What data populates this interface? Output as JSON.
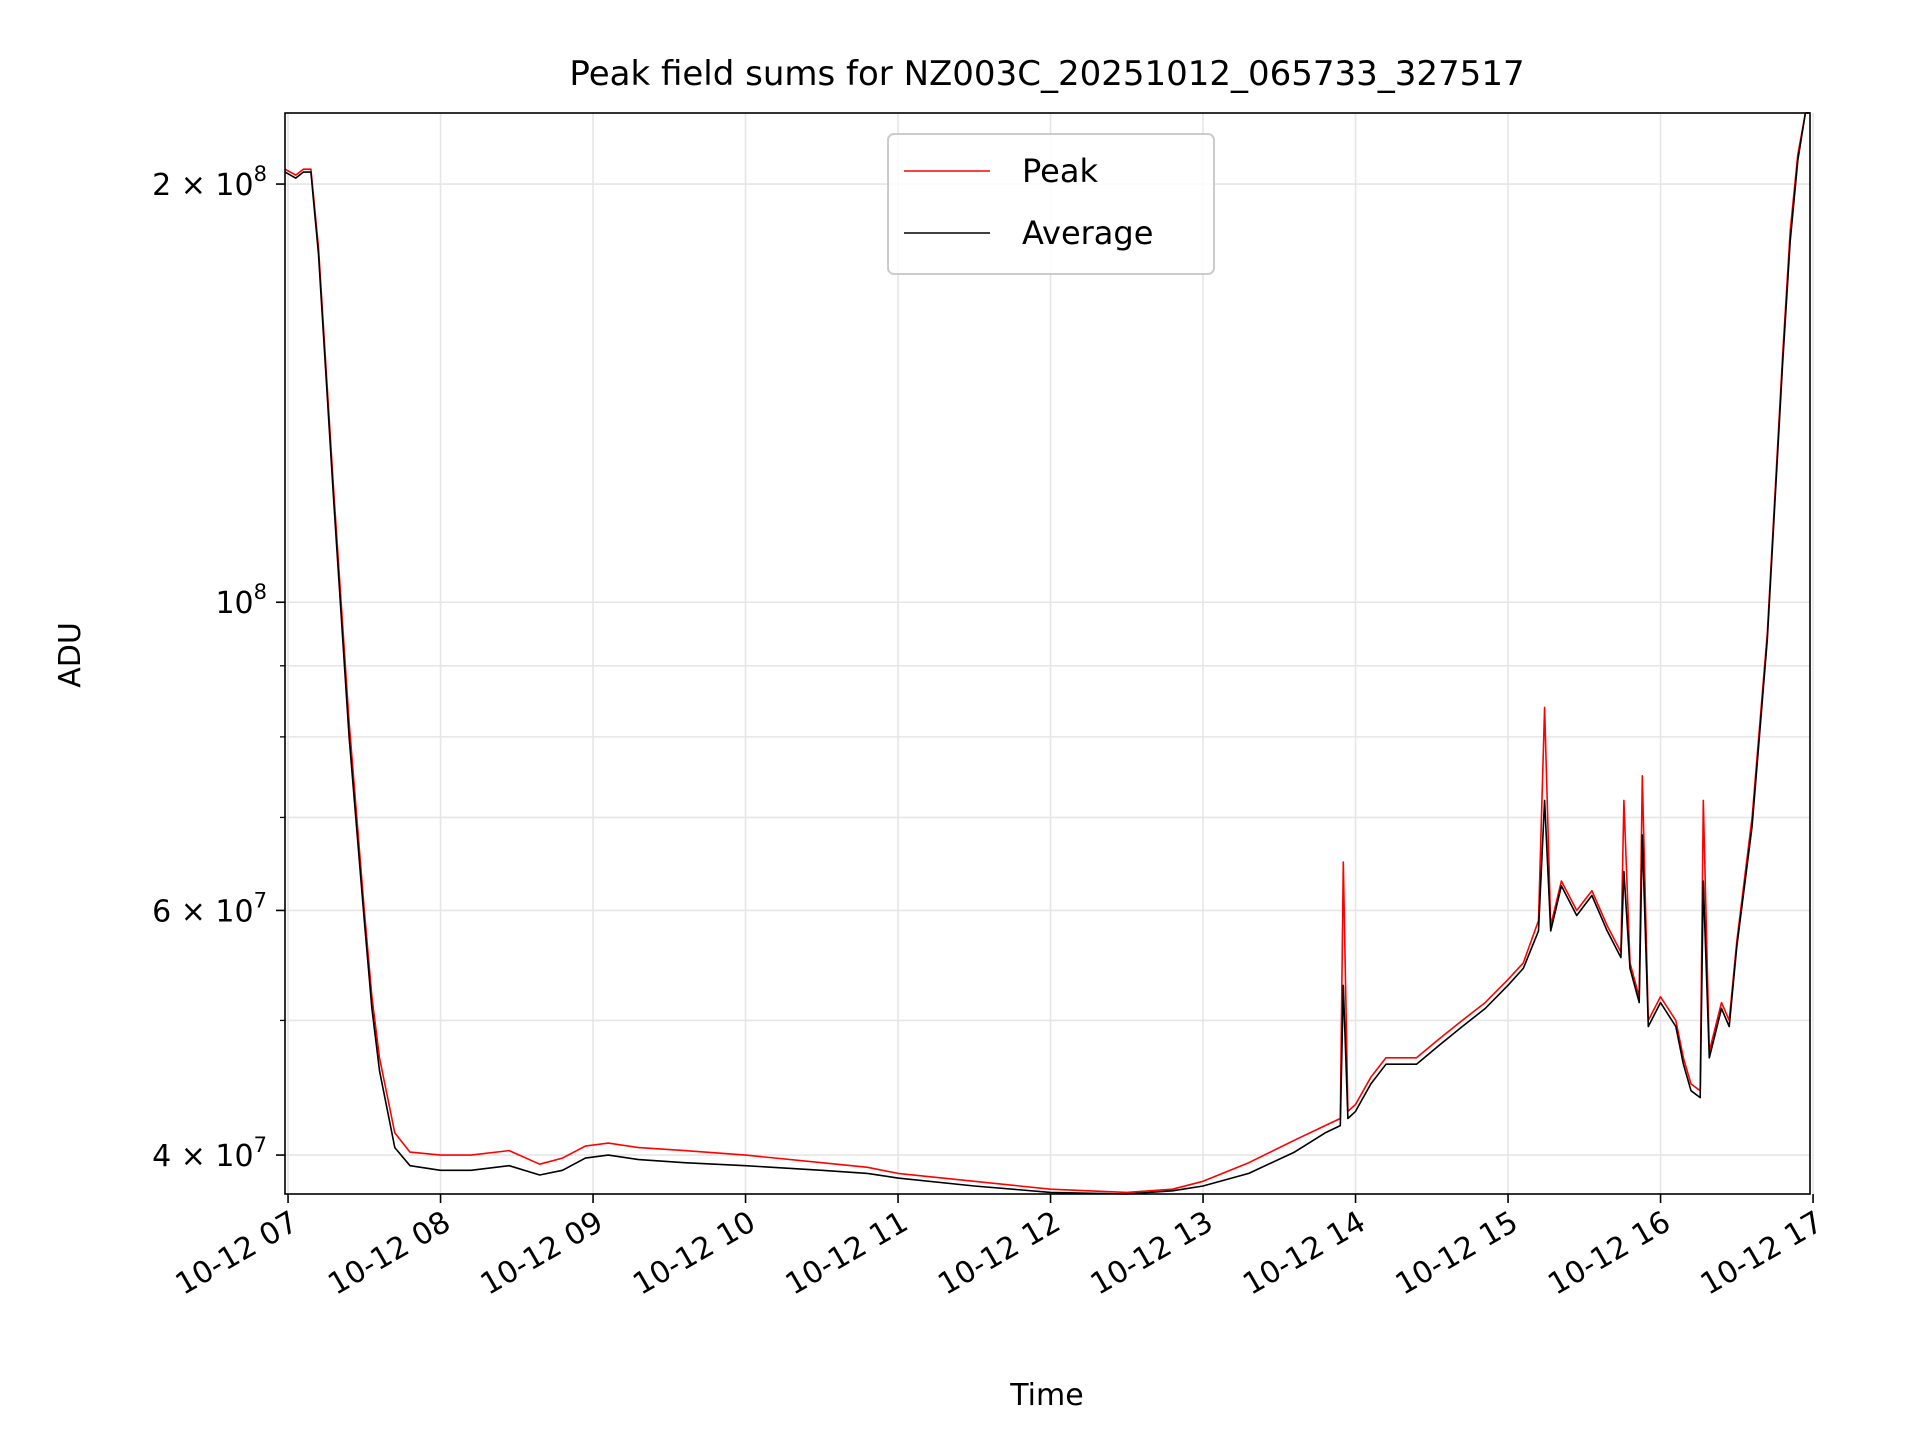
{
  "chart_data": {
    "type": "line",
    "title": "Peak field sums for NZ003C_20251012_065733_327517",
    "xlabel": "Time",
    "ylabel": "ADU",
    "yscale": "log",
    "xlim": [
      6.98,
      16.98
    ],
    "ylim": [
      37500000,
      225000000
    ],
    "grid": true,
    "legend_position": "upper center",
    "x_ticks": [
      {
        "value": 7,
        "label": "10-12 07"
      },
      {
        "value": 8,
        "label": "10-12 08"
      },
      {
        "value": 9,
        "label": "10-12 09"
      },
      {
        "value": 10,
        "label": "10-12 10"
      },
      {
        "value": 11,
        "label": "10-12 11"
      },
      {
        "value": 12,
        "label": "10-12 12"
      },
      {
        "value": 13,
        "label": "10-12 13"
      },
      {
        "value": 14,
        "label": "10-12 14"
      },
      {
        "value": 15,
        "label": "10-12 15"
      },
      {
        "value": 16,
        "label": "10-12 16"
      },
      {
        "value": 17,
        "label": "10-12 17"
      }
    ],
    "y_major_ticks": [
      {
        "value": 40000000,
        "base": "4 × 10",
        "exp": "7"
      },
      {
        "value": 60000000,
        "base": "6 × 10",
        "exp": "7"
      },
      {
        "value": 100000000,
        "base": "10",
        "exp": "8"
      },
      {
        "value": 200000000,
        "base": "2 × 10",
        "exp": "8"
      }
    ],
    "y_minor_ticks": [
      50000000,
      70000000,
      80000000,
      90000000
    ],
    "series": [
      {
        "name": "Peak",
        "color": "#ff0000",
        "x": [
          6.98,
          7.05,
          7.1,
          7.15,
          7.2,
          7.3,
          7.4,
          7.5,
          7.55,
          7.6,
          7.7,
          7.8,
          8.0,
          8.2,
          8.45,
          8.65,
          8.8,
          8.95,
          9.1,
          9.3,
          9.6,
          10.0,
          10.5,
          10.8,
          11.0,
          11.5,
          12.0,
          12.5,
          12.8,
          13.0,
          13.3,
          13.6,
          13.8,
          13.9,
          13.92,
          13.95,
          14.0,
          14.1,
          14.2,
          14.4,
          14.55,
          14.7,
          14.85,
          15.0,
          15.1,
          15.2,
          15.24,
          15.28,
          15.35,
          15.45,
          15.55,
          15.65,
          15.74,
          15.76,
          15.8,
          15.86,
          15.88,
          15.92,
          16.0,
          16.1,
          16.15,
          16.2,
          16.26,
          16.28,
          16.32,
          16.4,
          16.45,
          16.5,
          16.6,
          16.7,
          16.8,
          16.85,
          16.9,
          16.95,
          16.98
        ],
        "y": [
          205000000,
          203000000,
          205000000,
          205000000,
          180000000,
          120000000,
          82000000,
          60000000,
          52000000,
          47000000,
          41500000,
          40200000,
          40000000,
          40000000,
          40300000,
          39400000,
          39800000,
          40600000,
          40800000,
          40500000,
          40300000,
          40000000,
          39500000,
          39200000,
          38800000,
          38300000,
          37800000,
          37600000,
          37800000,
          38300000,
          39500000,
          41000000,
          42000000,
          42500000,
          65000000,
          43000000,
          43500000,
          45500000,
          47000000,
          47000000,
          48500000,
          50000000,
          51500000,
          53500000,
          55000000,
          59000000,
          84000000,
          58500000,
          63000000,
          60000000,
          62000000,
          58500000,
          56000000,
          72000000,
          55000000,
          52000000,
          75000000,
          50000000,
          52000000,
          50000000,
          47000000,
          45000000,
          44500000,
          72000000,
          47500000,
          51500000,
          50000000,
          57000000,
          70000000,
          95000000,
          150000000,
          185000000,
          210000000,
          225000000,
          225000000
        ]
      },
      {
        "name": "Average",
        "color": "#000000",
        "x": [
          6.98,
          7.05,
          7.1,
          7.15,
          7.2,
          7.3,
          7.4,
          7.5,
          7.55,
          7.6,
          7.7,
          7.8,
          8.0,
          8.2,
          8.45,
          8.65,
          8.8,
          8.95,
          9.1,
          9.3,
          9.6,
          10.0,
          10.5,
          10.8,
          11.0,
          11.5,
          12.0,
          12.5,
          12.8,
          13.0,
          13.3,
          13.6,
          13.8,
          13.9,
          13.92,
          13.95,
          14.0,
          14.1,
          14.2,
          14.4,
          14.55,
          14.7,
          14.85,
          15.0,
          15.1,
          15.2,
          15.24,
          15.28,
          15.35,
          15.45,
          15.55,
          15.65,
          15.74,
          15.76,
          15.8,
          15.86,
          15.88,
          15.92,
          16.0,
          16.1,
          16.15,
          16.2,
          16.26,
          16.28,
          16.32,
          16.4,
          16.45,
          16.5,
          16.6,
          16.7,
          16.8,
          16.85,
          16.9,
          16.95,
          16.98
        ],
        "y": [
          204000000,
          202000000,
          204000000,
          204000000,
          178000000,
          118000000,
          80000000,
          59000000,
          51000000,
          46000000,
          40500000,
          39300000,
          39000000,
          39000000,
          39300000,
          38700000,
          39000000,
          39800000,
          40000000,
          39700000,
          39500000,
          39300000,
          39000000,
          38800000,
          38500000,
          38000000,
          37600000,
          37500000,
          37700000,
          38000000,
          38800000,
          40200000,
          41500000,
          42000000,
          53000000,
          42500000,
          43000000,
          45000000,
          46500000,
          46500000,
          48000000,
          49500000,
          51000000,
          53000000,
          54500000,
          58000000,
          72000000,
          58000000,
          62500000,
          59500000,
          61500000,
          58000000,
          55500000,
          64000000,
          54500000,
          51500000,
          68000000,
          49500000,
          51500000,
          49500000,
          46500000,
          44500000,
          44000000,
          63000000,
          47000000,
          51000000,
          49500000,
          56500000,
          69000000,
          94000000,
          148000000,
          182000000,
          208000000,
          225000000,
          225000000
        ]
      }
    ]
  }
}
